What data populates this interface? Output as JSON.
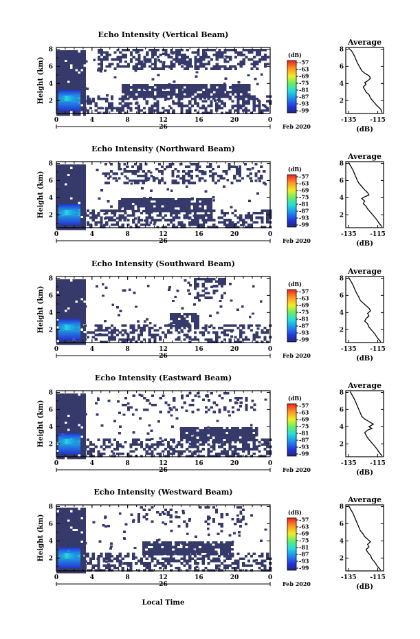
{
  "figure": {
    "bottom_label": "Local Time",
    "date_suffix": "Feb 2020",
    "date_day": "26"
  },
  "chart_data": [
    {
      "type": "heatmap",
      "title": "Echo Intensity (Vertical Beam)",
      "ylabel": "Height (km)",
      "x_ticks": [
        "0",
        "4",
        "8",
        "12",
        "16",
        "20",
        "0"
      ],
      "y_ticks": [
        "2",
        "4",
        "6",
        "8"
      ],
      "xlim": [
        0,
        24
      ],
      "ylim": [
        0.5,
        8.2
      ],
      "colorbar": {
        "unit": "(dB)",
        "ticks": [
          "-57",
          "-63",
          "-69",
          "-75",
          "-81",
          "-87",
          "-93",
          "-99"
        ]
      },
      "average": {
        "title": "Average",
        "xlabel": "(dB)",
        "x_ticks": [
          "-135",
          "-115"
        ],
        "y_ticks": [
          "2",
          "4",
          "6",
          "8"
        ],
        "xlim": [
          -137,
          -111
        ],
        "ylim": [
          0.5,
          8.2
        ],
        "x": [
          -112,
          -113,
          -116,
          -118,
          -120,
          -121,
          -123,
          -124,
          -125,
          -123,
          -124,
          -122,
          -120,
          -121,
          -124,
          -126,
          -127,
          -128,
          -129,
          -130,
          -131,
          -132,
          -133,
          -135
        ],
        "y": [
          0.6,
          1.0,
          1.5,
          1.9,
          2.3,
          2.7,
          3.0,
          3.3,
          3.6,
          3.9,
          4.1,
          4.3,
          4.6,
          4.9,
          5.2,
          5.5,
          5.8,
          6.1,
          6.4,
          6.8,
          7.2,
          7.5,
          7.8,
          8.1
        ]
      }
    },
    {
      "type": "heatmap",
      "title": "Echo Intensity (Northward Beam)",
      "ylabel": "Height (km)",
      "x_ticks": [
        "0",
        "4",
        "8",
        "12",
        "16",
        "20",
        "0"
      ],
      "y_ticks": [
        "2",
        "4",
        "6",
        "8"
      ],
      "xlim": [
        0,
        24
      ],
      "ylim": [
        0.5,
        8.2
      ],
      "colorbar": {
        "unit": "(dB)",
        "ticks": [
          "-57",
          "-63",
          "-69",
          "-75",
          "-81",
          "-87",
          "-93",
          "-99"
        ]
      },
      "average": {
        "title": "Average",
        "xlabel": "(dB)",
        "x_ticks": [
          "-135",
          "-115"
        ],
        "y_ticks": [
          "2",
          "4",
          "6",
          "8"
        ],
        "xlim": [
          -137,
          -111
        ],
        "ylim": [
          0.5,
          8.2
        ],
        "x": [
          -112,
          -114,
          -116,
          -118,
          -120,
          -122,
          -123,
          -125,
          -124,
          -126,
          -124,
          -121,
          -122,
          -124,
          -126,
          -128,
          -129,
          -130,
          -131,
          -132,
          -133,
          -134,
          -135
        ],
        "y": [
          0.6,
          1.0,
          1.5,
          1.9,
          2.3,
          2.7,
          3.0,
          3.3,
          3.6,
          3.9,
          4.1,
          4.3,
          4.6,
          4.9,
          5.3,
          5.7,
          6.0,
          6.4,
          6.8,
          7.2,
          7.5,
          7.8,
          8.1
        ]
      }
    },
    {
      "type": "heatmap",
      "title": "Echo Intensity (Southward Beam)",
      "ylabel": "Height (km)",
      "x_ticks": [
        "0",
        "4",
        "8",
        "12",
        "16",
        "20",
        "0"
      ],
      "y_ticks": [
        "2",
        "4",
        "6",
        "8"
      ],
      "xlim": [
        0,
        24
      ],
      "ylim": [
        0.5,
        8.2
      ],
      "colorbar": {
        "unit": "(dB)",
        "ticks": [
          "-57",
          "-63",
          "-69",
          "-75",
          "-81",
          "-87",
          "-93",
          "-99"
        ]
      },
      "average": {
        "title": "Average",
        "xlabel": "(dB)",
        "x_ticks": [
          "-135",
          "-115"
        ],
        "y_ticks": [
          "2",
          "4",
          "6",
          "8"
        ],
        "xlim": [
          -137,
          -111
        ],
        "ylim": [
          0.5,
          8.2
        ],
        "x": [
          -113,
          -115,
          -117,
          -119,
          -121,
          -122,
          -124,
          -123,
          -121,
          -122,
          -120,
          -121,
          -123,
          -125,
          -127,
          -128,
          -129,
          -130,
          -131,
          -132,
          -133,
          -134,
          -135
        ],
        "y": [
          0.6,
          1.0,
          1.5,
          1.9,
          2.3,
          2.7,
          3.0,
          3.3,
          3.6,
          3.9,
          4.2,
          4.5,
          4.8,
          5.1,
          5.4,
          5.8,
          6.1,
          6.4,
          6.8,
          7.2,
          7.5,
          7.8,
          8.1
        ]
      }
    },
    {
      "type": "heatmap",
      "title": "Echo Intensity (Eastward Beam)",
      "ylabel": "Height (km)",
      "x_ticks": [
        "0",
        "4",
        "8",
        "12",
        "16",
        "20",
        "0"
      ],
      "y_ticks": [
        "2",
        "4",
        "6",
        "8"
      ],
      "xlim": [
        0,
        24
      ],
      "ylim": [
        0.5,
        8.2
      ],
      "colorbar": {
        "unit": "(dB)",
        "ticks": [
          "-57",
          "-63",
          "-69",
          "-75",
          "-81",
          "-87",
          "-93",
          "-99"
        ]
      },
      "average": {
        "title": "Average",
        "xlabel": "(dB)",
        "x_ticks": [
          "-135",
          "-115"
        ],
        "y_ticks": [
          "2",
          "4",
          "6",
          "8"
        ],
        "xlim": [
          -137,
          -111
        ],
        "ylim": [
          0.5,
          8.2
        ],
        "x": [
          -112,
          -114,
          -116,
          -118,
          -120,
          -122,
          -123,
          -124,
          -122,
          -119,
          -121,
          -118,
          -121,
          -124,
          -126,
          -127,
          -128,
          -129,
          -130,
          -131,
          -132,
          -133,
          -134
        ],
        "y": [
          0.6,
          1.0,
          1.5,
          1.9,
          2.3,
          2.7,
          3.0,
          3.3,
          3.6,
          3.8,
          4.0,
          4.3,
          4.6,
          4.9,
          5.2,
          5.6,
          6.0,
          6.4,
          6.8,
          7.2,
          7.5,
          7.8,
          8.1
        ]
      }
    },
    {
      "type": "heatmap",
      "title": "Echo Intensity (Westward Beam)",
      "ylabel": "Height (km)",
      "x_ticks": [
        "0",
        "4",
        "8",
        "12",
        "16",
        "20",
        "0"
      ],
      "y_ticks": [
        "2",
        "4",
        "6",
        "8"
      ],
      "xlim": [
        0,
        24
      ],
      "ylim": [
        0.5,
        8.2
      ],
      "colorbar": {
        "unit": "(dB)",
        "ticks": [
          "-57",
          "-63",
          "-69",
          "-75",
          "-81",
          "-87",
          "-93",
          "-99"
        ]
      },
      "average": {
        "title": "Average",
        "xlabel": "(dB)",
        "x_ticks": [
          "-135",
          "-115"
        ],
        "y_ticks": [
          "2",
          "4",
          "6",
          "8"
        ],
        "xlim": [
          -137,
          -111
        ],
        "ylim": [
          0.5,
          8.2
        ],
        "x": [
          -113,
          -115,
          -117,
          -119,
          -120,
          -122,
          -123,
          -121,
          -122,
          -120,
          -122,
          -124,
          -125,
          -127,
          -128,
          -129,
          -130,
          -131,
          -132,
          -133,
          -134,
          -135
        ],
        "y": [
          0.6,
          1.0,
          1.5,
          1.9,
          2.3,
          2.7,
          3.0,
          3.3,
          3.6,
          3.9,
          4.2,
          4.5,
          4.8,
          5.2,
          5.6,
          6.0,
          6.4,
          6.8,
          7.2,
          7.5,
          7.8,
          8.1
        ]
      }
    }
  ]
}
